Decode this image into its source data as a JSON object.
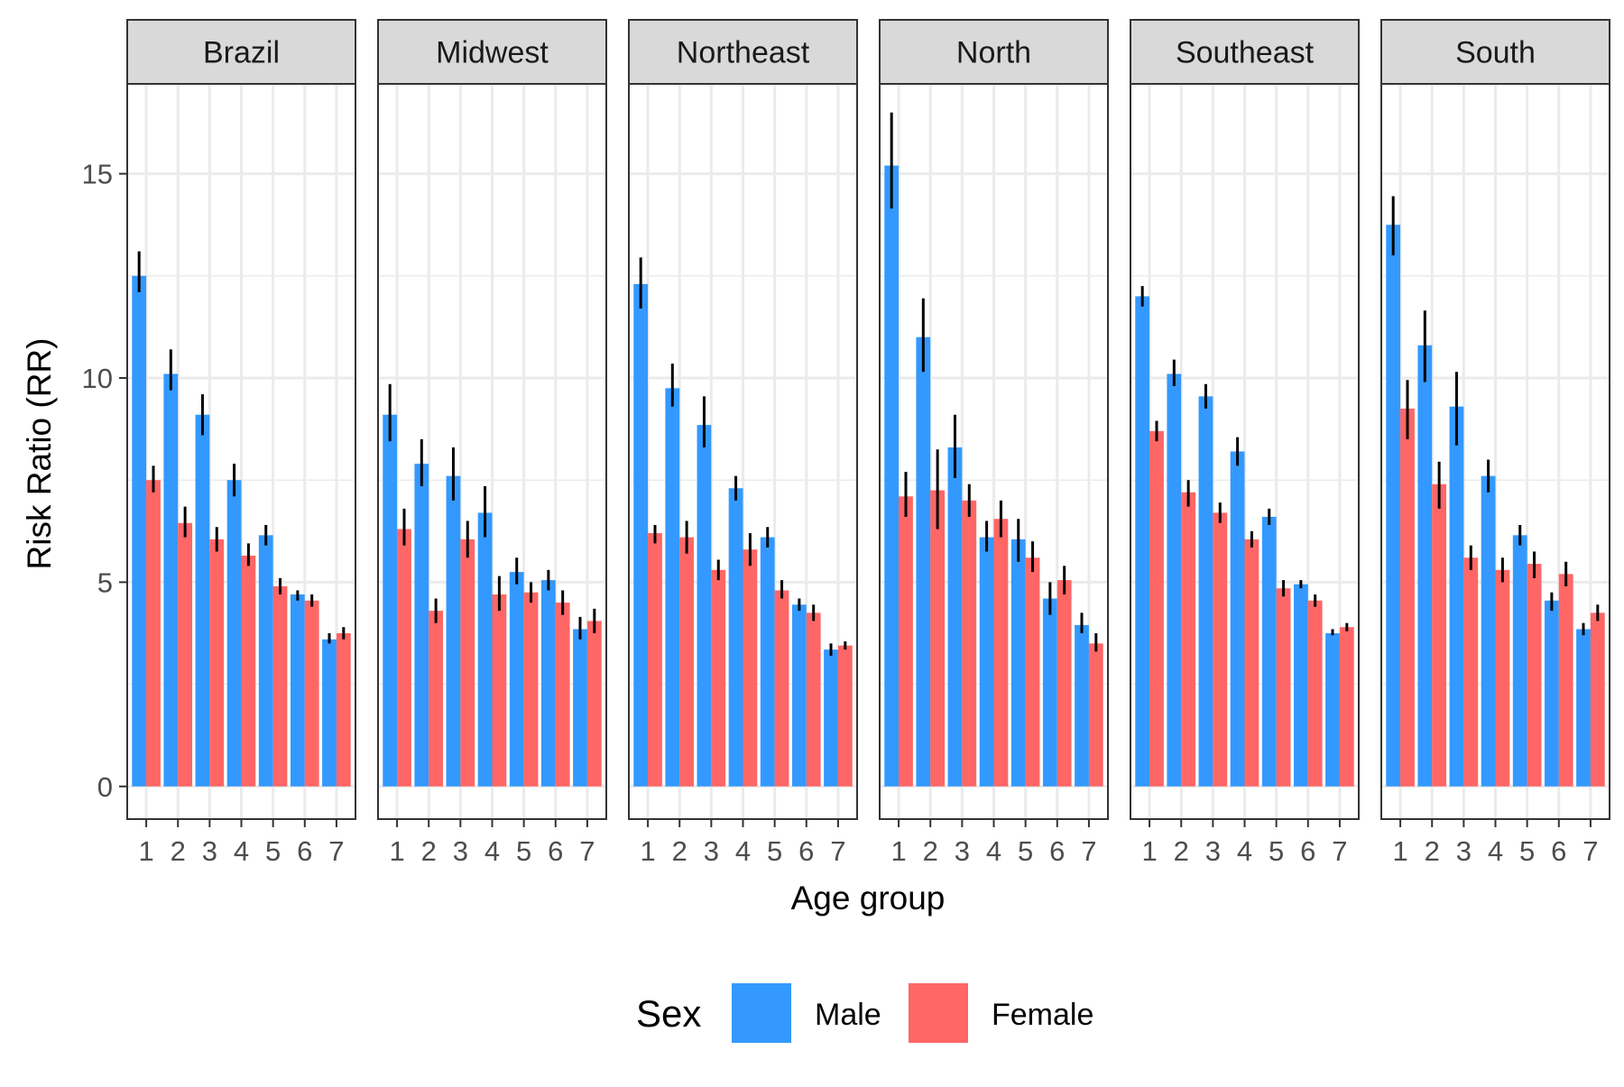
{
  "chart_data": {
    "type": "bar",
    "title": "",
    "xlabel": "Age group",
    "ylabel": "Risk Ratio (RR)",
    "ylim": [
      -0.8,
      17.2
    ],
    "yticks": [
      0,
      5,
      10,
      15
    ],
    "categories": [
      "1",
      "2",
      "3",
      "4",
      "5",
      "6",
      "7"
    ],
    "grid": true,
    "legend": {
      "title": "Sex",
      "position": "bottom",
      "entries": [
        "Male",
        "Female"
      ]
    },
    "colors": {
      "Male": "#3399FF",
      "Female": "#FF6666"
    },
    "panels": [
      {
        "name": "Brazil",
        "series": [
          {
            "name": "Male",
            "values": [
              12.5,
              10.1,
              9.1,
              7.5,
              6.15,
              4.7,
              3.6
            ],
            "lower": [
              12.1,
              9.7,
              8.6,
              7.1,
              5.9,
              4.55,
              3.5
            ],
            "upper": [
              13.1,
              10.7,
              9.6,
              7.9,
              6.4,
              4.8,
              3.75
            ]
          },
          {
            "name": "Female",
            "values": [
              7.5,
              6.45,
              6.05,
              5.65,
              4.9,
              4.55,
              3.75
            ],
            "lower": [
              7.2,
              6.1,
              5.75,
              5.4,
              4.7,
              4.4,
              3.6
            ],
            "upper": [
              7.85,
              6.85,
              6.35,
              5.95,
              5.1,
              4.7,
              3.9
            ]
          }
        ]
      },
      {
        "name": "Midwest",
        "series": [
          {
            "name": "Male",
            "values": [
              9.1,
              7.9,
              7.6,
              6.7,
              5.25,
              5.05,
              3.85
            ],
            "lower": [
              8.45,
              7.35,
              7.0,
              6.1,
              4.95,
              4.8,
              3.6
            ],
            "upper": [
              9.85,
              8.5,
              8.3,
              7.35,
              5.6,
              5.3,
              4.15
            ]
          },
          {
            "name": "Female",
            "values": [
              6.3,
              4.3,
              6.05,
              4.7,
              4.75,
              4.5,
              4.05
            ],
            "lower": [
              5.9,
              4.0,
              5.6,
              4.3,
              4.5,
              4.2,
              3.75
            ],
            "upper": [
              6.8,
              4.6,
              6.5,
              5.15,
              5.0,
              4.8,
              4.35
            ]
          }
        ]
      },
      {
        "name": "Northeast",
        "series": [
          {
            "name": "Male",
            "values": [
              12.3,
              9.75,
              8.85,
              7.3,
              6.1,
              4.45,
              3.35
            ],
            "lower": [
              11.7,
              9.3,
              8.3,
              7.0,
              5.85,
              4.3,
              3.2
            ],
            "upper": [
              12.95,
              10.35,
              9.55,
              7.6,
              6.35,
              4.6,
              3.5
            ]
          },
          {
            "name": "Female",
            "values": [
              6.2,
              6.1,
              5.3,
              5.8,
              4.8,
              4.25,
              3.45
            ],
            "lower": [
              5.95,
              5.7,
              5.05,
              5.4,
              4.6,
              4.05,
              3.35
            ],
            "upper": [
              6.4,
              6.5,
              5.55,
              6.2,
              5.05,
              4.45,
              3.55
            ]
          }
        ]
      },
      {
        "name": "North",
        "series": [
          {
            "name": "Male",
            "values": [
              15.2,
              11.0,
              8.3,
              6.1,
              6.05,
              4.6,
              3.95
            ],
            "lower": [
              14.15,
              10.15,
              7.55,
              5.75,
              5.5,
              4.2,
              3.75
            ],
            "upper": [
              16.5,
              11.95,
              9.1,
              6.5,
              6.55,
              5.0,
              4.25
            ]
          },
          {
            "name": "Female",
            "values": [
              7.1,
              7.25,
              7.0,
              6.55,
              5.6,
              5.05,
              3.5
            ],
            "lower": [
              6.6,
              6.3,
              6.6,
              6.1,
              5.25,
              4.7,
              3.3
            ],
            "upper": [
              7.7,
              8.25,
              7.4,
              7.0,
              6.0,
              5.4,
              3.75
            ]
          }
        ]
      },
      {
        "name": "Southeast",
        "series": [
          {
            "name": "Male",
            "values": [
              12.0,
              10.1,
              9.55,
              8.2,
              6.6,
              4.95,
              3.75
            ],
            "lower": [
              11.75,
              9.8,
              9.25,
              7.85,
              6.4,
              4.85,
              3.7
            ],
            "upper": [
              12.25,
              10.45,
              9.85,
              8.55,
              6.8,
              5.05,
              3.85
            ]
          },
          {
            "name": "Female",
            "values": [
              8.7,
              7.2,
              6.7,
              6.05,
              4.85,
              4.55,
              3.9
            ],
            "lower": [
              8.45,
              6.85,
              6.45,
              5.85,
              4.65,
              4.4,
              3.8
            ],
            "upper": [
              8.95,
              7.5,
              6.95,
              6.25,
              5.05,
              4.7,
              4.0
            ]
          }
        ]
      },
      {
        "name": "South",
        "series": [
          {
            "name": "Male",
            "values": [
              13.75,
              10.8,
              9.3,
              7.6,
              6.15,
              4.55,
              3.85
            ],
            "lower": [
              13.0,
              9.9,
              8.35,
              7.2,
              5.9,
              4.3,
              3.7
            ],
            "upper": [
              14.45,
              11.65,
              10.15,
              8.0,
              6.4,
              4.75,
              4.0
            ]
          },
          {
            "name": "Female",
            "values": [
              9.25,
              7.4,
              5.6,
              5.3,
              5.45,
              5.2,
              4.25
            ],
            "lower": [
              8.5,
              6.8,
              5.3,
              5.0,
              5.1,
              4.9,
              4.05
            ],
            "upper": [
              9.95,
              7.95,
              5.9,
              5.6,
              5.75,
              5.5,
              4.45
            ]
          }
        ]
      }
    ]
  }
}
